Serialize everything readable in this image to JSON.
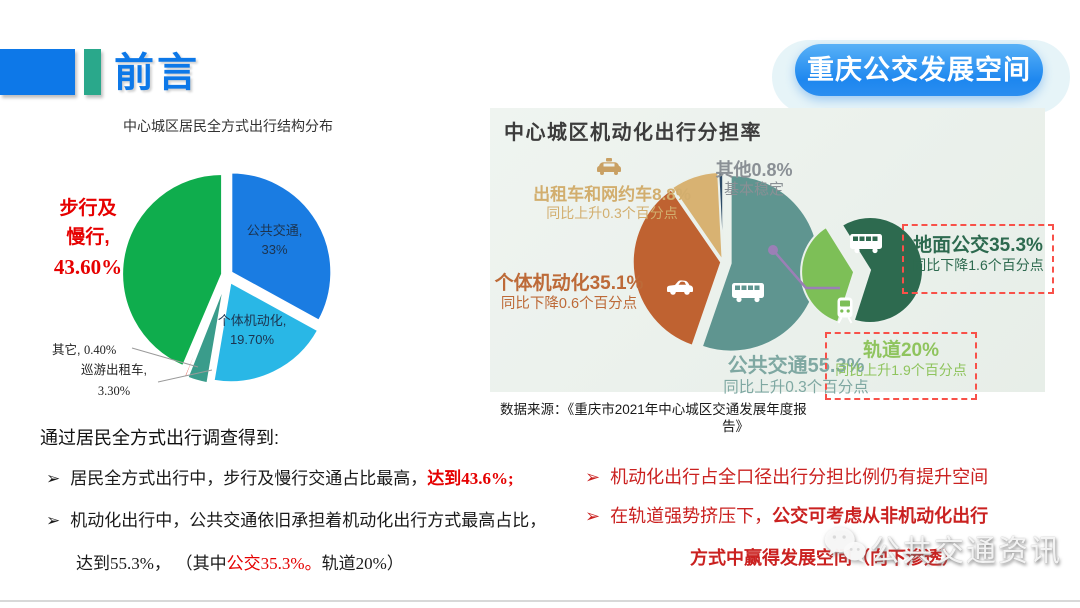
{
  "header": {
    "title": "前言",
    "badge": "重庆公交发展空间"
  },
  "left_chart": {
    "title": "中心城区居民全方式出行结构分布"
  },
  "right_chart": {
    "title": "中心城区机动化出行分担率",
    "source_line1": "数据来源：《重庆市2021年中心城区交通发展年度报",
    "source_line2": "告》"
  },
  "bottom_left": {
    "intro": "通过居民全方式出行调查得到:",
    "bullet_icon": "➢",
    "b1_text": "居民全方式出行中，步行及慢行交通占比最高，",
    "b1_red_cn": "达到",
    "b1_red_num": "43.6%;",
    "b2_line1": "机动化出行中，公共交通依旧承担着机动化出行方式最高占比，",
    "b2_p1": "达到",
    "b2_p2": "55.3%，",
    "b2_p3": " （其中",
    "b2_p4": "公交",
    "b2_p5": "35.3%。",
    "b2_p6": "轨道",
    "b2_p7": "20%",
    "b2_p8": "）"
  },
  "bottom_right": {
    "bullet_icon": "➢",
    "b1": "机动化出行占全口径出行分担比例仍有提升空间",
    "b2_pre": "在轨道强势挤压下，",
    "b2_bold": "公交可考虑从非机动化出行",
    "b2_line2": "方式中赢得发展空间（向下渗透）"
  },
  "watermark": {
    "text": "公共交通资讯"
  },
  "chart_data": [
    {
      "type": "pie",
      "title": "中心城区居民全方式出行结构分布",
      "start_angle": 0,
      "segments": [
        {
          "label": "公共交通",
          "value": 33,
          "label_text": "公共交通,",
          "value_text": "33%",
          "color": "#1a7ce2",
          "explode": 5
        },
        {
          "label": "个体机动化",
          "value": 19.7,
          "label_text": "个体机动化,",
          "value_text": "19.70%",
          "color": "#29b7e6",
          "explode": 8
        },
        {
          "label": "巡游出租车",
          "value": 3.3,
          "label_text": "巡游出租车,",
          "value_text": "3.30%",
          "color": "#3a9c8b",
          "explode": 10
        },
        {
          "label": "其它",
          "value": 0.4,
          "label_text": "其它,",
          "value_text": "0.40%",
          "color": "#e0574a",
          "explode": 10
        },
        {
          "label": "步行及慢行",
          "value": 43.6,
          "callout_line1": "步行及",
          "callout_line2": "慢行,",
          "value_text": "43.60%",
          "color": "#0fad4d",
          "explode": 5
        }
      ]
    },
    {
      "type": "pie-nested",
      "title": "中心城区机动化出行分担率",
      "main": {
        "start_angle": 0,
        "segments": [
          {
            "label": "公共交通",
            "value": 55.3,
            "pct_text": "公共交通55.3%",
            "delta_text": "同比上升0.3个百分点",
            "color": "#5f9590",
            "explode": 8
          },
          {
            "label": "个体机动化",
            "value": 35.1,
            "pct_text": "个体机动化35.1%",
            "delta_text": "同比下降0.6个百分点",
            "color": "#bf6231",
            "explode": 2
          },
          {
            "label": "出租车和网约车",
            "value": 8.8,
            "pct_text": "出租车和网约车8.8%",
            "delta_text": "同比上升0.3个百分点",
            "color": "#d8b272",
            "explode": 2
          },
          {
            "label": "其他",
            "value": 0.8,
            "pct_text": "其他0.8%",
            "delta_text": "基本稳定",
            "color": "#2c4a66",
            "explode": 2
          }
        ]
      },
      "sub": {
        "start_angle": -32,
        "segments": [
          {
            "label": "地面公交",
            "value": 35.3,
            "pct_text": "地面公交35.3%",
            "delta_text": "同比下降1.6个百分点",
            "color": "#2d6a4f",
            "explode": 0
          },
          {
            "label": "轨道",
            "value": 20,
            "pct_text": "轨道20%",
            "delta_text": "同比上升1.9个百分点",
            "color": "#7dbf57",
            "explode": 16
          }
        ]
      },
      "source": "数据来源：《重庆市2021年中心城区交通发展年度报告》"
    }
  ]
}
